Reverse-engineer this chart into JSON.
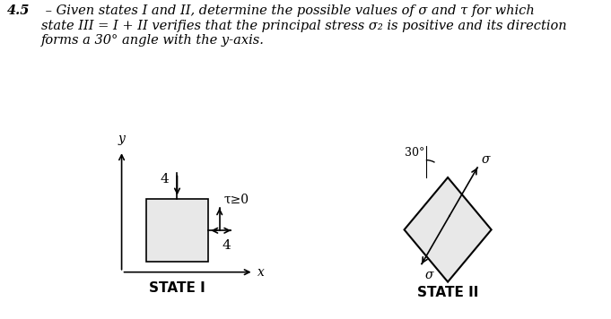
{
  "title_bold": "4.5",
  "title_dash": " – ",
  "title_text": "Given states I and II, determine the possible values of σ and τ for which\nstate III = I + II verifies that the principal stress σ₂ is positive and its direction\nforms a 30° angle with the y-axis.",
  "state1_label": "STATE I",
  "state2_label": "STATE II",
  "rect_color": "#e8e8e8",
  "rect_edge_color": "#000000",
  "background_color": "#ffffff",
  "axis_label_x": "x",
  "axis_label_y": "y",
  "stress_4_top": "4",
  "stress_4_right": "4",
  "tau_label": "τ≥0",
  "angle_label": "30°",
  "sigma_label": "σ",
  "fontsize_title": 10.5,
  "fontsize_labels": 10,
  "fontsize_stress": 11
}
